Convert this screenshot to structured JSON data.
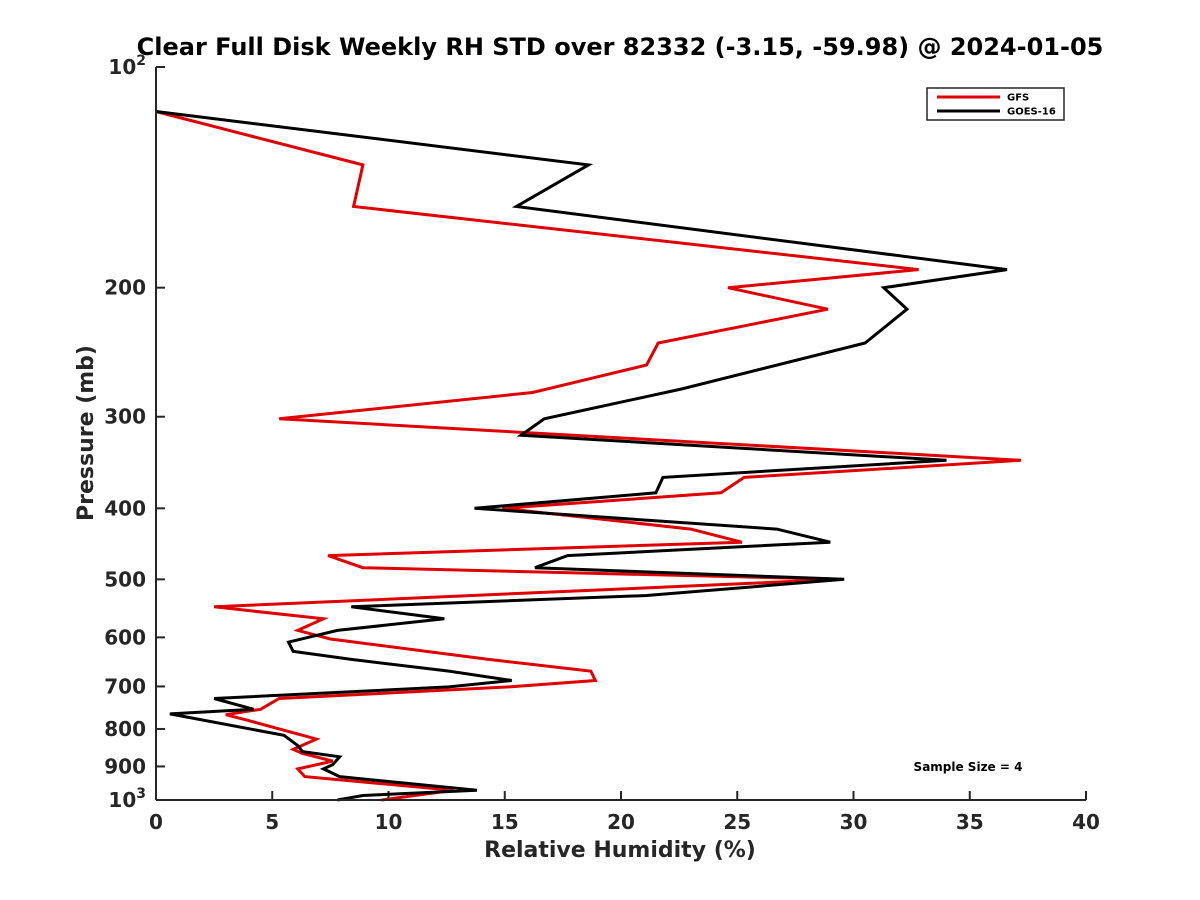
{
  "chart_data": {
    "type": "line",
    "title": "Clear Full Disk Weekly RH STD over 82332 (-3.15, -59.98) @ 2024-01-05",
    "xlabel": "Relative Humidity (%)",
    "ylabel": "Pressure (mb)",
    "xlim": [
      0,
      40
    ],
    "ylim": [
      100,
      1000
    ],
    "yscale": "log",
    "yaxis_direction": "reversed",
    "x_ticks": [
      "0",
      "5",
      "10",
      "15",
      "20",
      "25",
      "30",
      "35",
      "40"
    ],
    "y_ticks": [
      {
        "value": 100,
        "label": "10",
        "sup": "2"
      },
      {
        "value": 200,
        "label": "200",
        "sup": ""
      },
      {
        "value": 300,
        "label": "300",
        "sup": ""
      },
      {
        "value": 400,
        "label": "400",
        "sup": ""
      },
      {
        "value": 500,
        "label": "500",
        "sup": ""
      },
      {
        "value": 600,
        "label": "600",
        "sup": ""
      },
      {
        "value": 700,
        "label": "700",
        "sup": ""
      },
      {
        "value": 800,
        "label": "800",
        "sup": ""
      },
      {
        "value": 900,
        "label": "900",
        "sup": ""
      },
      {
        "value": 1000,
        "label": "10",
        "sup": "3"
      }
    ],
    "legend_position": "top-right",
    "annotation": "Sample Size = 4",
    "series": [
      {
        "name": "GFS",
        "color": "#e00000",
        "points": [
          [
            0.0,
            115
          ],
          [
            8.9,
            136
          ],
          [
            8.5,
            155
          ],
          [
            32.8,
            189
          ],
          [
            24.6,
            200
          ],
          [
            28.9,
            214
          ],
          [
            21.6,
            238
          ],
          [
            21.1,
            255
          ],
          [
            16.2,
            278
          ],
          [
            5.3,
            302
          ],
          [
            37.2,
            344
          ],
          [
            25.3,
            363
          ],
          [
            24.3,
            381
          ],
          [
            14.9,
            400
          ],
          [
            23.0,
            427
          ],
          [
            25.2,
            445
          ],
          [
            7.4,
            464
          ],
          [
            8.9,
            482
          ],
          [
            29.5,
            500
          ],
          [
            2.5,
            545
          ],
          [
            7.2,
            566
          ],
          [
            6.1,
            587
          ],
          [
            7.5,
            603
          ],
          [
            14.3,
            643
          ],
          [
            18.7,
            667
          ],
          [
            18.9,
            687
          ],
          [
            15.2,
            701
          ],
          [
            5.3,
            727
          ],
          [
            4.5,
            752
          ],
          [
            3.0,
            765
          ],
          [
            3.9,
            778
          ],
          [
            6.9,
            826
          ],
          [
            5.9,
            853
          ],
          [
            6.3,
            864
          ],
          [
            7.6,
            885
          ],
          [
            6.1,
            907
          ],
          [
            6.4,
            929
          ],
          [
            12.8,
            970
          ],
          [
            9.7,
            1000
          ]
        ]
      },
      {
        "name": "GOES-16",
        "color": "#000000",
        "points": [
          [
            0.0,
            115
          ],
          [
            18.6,
            136
          ],
          [
            15.5,
            155
          ],
          [
            36.6,
            189
          ],
          [
            31.3,
            200
          ],
          [
            32.3,
            214
          ],
          [
            30.5,
            238
          ],
          [
            22.6,
            275
          ],
          [
            16.7,
            302
          ],
          [
            15.7,
            318
          ],
          [
            34.0,
            344
          ],
          [
            21.8,
            363
          ],
          [
            21.5,
            381
          ],
          [
            13.7,
            400
          ],
          [
            26.7,
            427
          ],
          [
            29.0,
            445
          ],
          [
            17.7,
            464
          ],
          [
            16.3,
            482
          ],
          [
            29.6,
            500
          ],
          [
            21.1,
            526
          ],
          [
            8.4,
            545
          ],
          [
            12.4,
            566
          ],
          [
            7.8,
            587
          ],
          [
            5.7,
            609
          ],
          [
            5.9,
            627
          ],
          [
            8.4,
            643
          ],
          [
            12.6,
            667
          ],
          [
            15.3,
            687
          ],
          [
            12.6,
            701
          ],
          [
            2.5,
            727
          ],
          [
            4.2,
            752
          ],
          [
            0.6,
            763
          ],
          [
            5.5,
            816
          ],
          [
            6.1,
            843
          ],
          [
            6.3,
            859
          ],
          [
            7.9,
            873
          ],
          [
            7.6,
            895
          ],
          [
            7.2,
            907
          ],
          [
            7.9,
            929
          ],
          [
            13.8,
            970
          ],
          [
            8.9,
            986
          ],
          [
            7.8,
            1000
          ]
        ]
      }
    ]
  }
}
